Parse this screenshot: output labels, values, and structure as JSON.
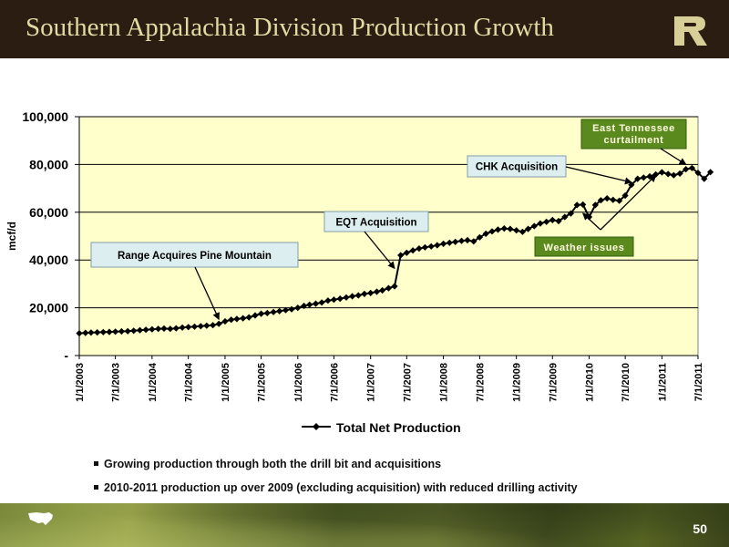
{
  "header": {
    "title": "Southern Appalachia Division Production Growth"
  },
  "chart_data": {
    "type": "line",
    "ylabel": "mcf/d",
    "ylim": [
      0,
      100000
    ],
    "yticks": [
      0,
      20000,
      40000,
      60000,
      80000,
      100000
    ],
    "ytick_labels": [
      "-",
      "20,000",
      "40,000",
      "60,000",
      "80,000",
      "100,000"
    ],
    "xlim": [
      "2003-01-01",
      "2011-07-01"
    ],
    "xtick_dates": [
      "2003-01-01",
      "2003-07-01",
      "2004-01-01",
      "2004-07-01",
      "2005-01-01",
      "2005-07-01",
      "2006-01-01",
      "2006-07-01",
      "2007-01-01",
      "2007-07-01",
      "2008-01-01",
      "2008-07-01",
      "2009-01-01",
      "2009-07-01",
      "2010-01-01",
      "2010-07-01",
      "2011-01-01",
      "2011-07-01"
    ],
    "xtick_labels": [
      "1/1/2003",
      "7/1/2003",
      "1/1/2004",
      "7/1/2004",
      "1/1/2005",
      "7/1/2005",
      "1/1/2006",
      "7/1/2006",
      "1/1/2007",
      "7/1/2007",
      "1/1/2008",
      "7/1/2008",
      "1/1/2009",
      "7/1/2009",
      "1/1/2010",
      "7/1/2010",
      "1/1/2011",
      "7/1/2011"
    ],
    "grid": true,
    "legend_placement": "bottom",
    "colors": {
      "plot_bg": "#ffffcc",
      "line": "#000000",
      "callout_blue": "#ddeef0",
      "callout_green": "#5a8a1e"
    },
    "series": [
      {
        "name": "Total Net Production",
        "points": [
          [
            "2003-01-01",
            9300
          ],
          [
            "2003-02-01",
            9500
          ],
          [
            "2003-03-01",
            9600
          ],
          [
            "2003-04-01",
            9700
          ],
          [
            "2003-05-01",
            9800
          ],
          [
            "2003-06-01",
            9900
          ],
          [
            "2003-07-01",
            10000
          ],
          [
            "2003-08-01",
            10100
          ],
          [
            "2003-09-01",
            10200
          ],
          [
            "2003-10-01",
            10400
          ],
          [
            "2003-11-01",
            10600
          ],
          [
            "2003-12-01",
            10800
          ],
          [
            "2004-01-01",
            11000
          ],
          [
            "2004-02-01",
            11200
          ],
          [
            "2004-03-01",
            11300
          ],
          [
            "2004-04-01",
            11200
          ],
          [
            "2004-05-01",
            11400
          ],
          [
            "2004-06-01",
            11700
          ],
          [
            "2004-07-01",
            11900
          ],
          [
            "2004-08-01",
            12100
          ],
          [
            "2004-09-01",
            12300
          ],
          [
            "2004-10-01",
            12500
          ],
          [
            "2004-11-01",
            12700
          ],
          [
            "2004-12-01",
            13300
          ],
          [
            "2005-01-01",
            14300
          ],
          [
            "2005-02-01",
            15000
          ],
          [
            "2005-03-01",
            15300
          ],
          [
            "2005-04-01",
            15600
          ],
          [
            "2005-05-01",
            16000
          ],
          [
            "2005-06-01",
            16800
          ],
          [
            "2005-07-01",
            17500
          ],
          [
            "2005-08-01",
            17800
          ],
          [
            "2005-09-01",
            18200
          ],
          [
            "2005-10-01",
            18600
          ],
          [
            "2005-11-01",
            19000
          ],
          [
            "2005-12-01",
            19400
          ],
          [
            "2006-01-01",
            20000
          ],
          [
            "2006-02-01",
            20800
          ],
          [
            "2006-03-01",
            21300
          ],
          [
            "2006-04-01",
            21700
          ],
          [
            "2006-05-01",
            22200
          ],
          [
            "2006-06-01",
            23000
          ],
          [
            "2006-07-01",
            23400
          ],
          [
            "2006-08-01",
            23800
          ],
          [
            "2006-09-01",
            24300
          ],
          [
            "2006-10-01",
            24800
          ],
          [
            "2006-11-01",
            25200
          ],
          [
            "2006-12-01",
            25800
          ],
          [
            "2007-01-01",
            26200
          ],
          [
            "2007-02-01",
            26700
          ],
          [
            "2007-03-01",
            27300
          ],
          [
            "2007-04-01",
            28200
          ],
          [
            "2007-05-01",
            29000
          ],
          [
            "2007-06-01",
            42000
          ],
          [
            "2007-07-01",
            43000
          ],
          [
            "2007-08-01",
            44000
          ],
          [
            "2007-09-01",
            44800
          ],
          [
            "2007-10-01",
            45300
          ],
          [
            "2007-11-01",
            45700
          ],
          [
            "2007-12-01",
            46200
          ],
          [
            "2008-01-01",
            46800
          ],
          [
            "2008-02-01",
            47200
          ],
          [
            "2008-03-01",
            47600
          ],
          [
            "2008-04-01",
            48000
          ],
          [
            "2008-05-01",
            48300
          ],
          [
            "2008-06-01",
            47800
          ],
          [
            "2008-07-01",
            49500
          ],
          [
            "2008-08-01",
            51000
          ],
          [
            "2008-09-01",
            52000
          ],
          [
            "2008-10-01",
            52700
          ],
          [
            "2008-11-01",
            53200
          ],
          [
            "2008-12-01",
            53000
          ],
          [
            "2009-01-01",
            52400
          ],
          [
            "2009-02-01",
            51800
          ],
          [
            "2009-03-01",
            53000
          ],
          [
            "2009-04-01",
            54200
          ],
          [
            "2009-05-01",
            55300
          ],
          [
            "2009-06-01",
            56000
          ],
          [
            "2009-07-01",
            56700
          ],
          [
            "2009-08-01",
            56300
          ],
          [
            "2009-09-01",
            58000
          ],
          [
            "2009-10-01",
            59500
          ],
          [
            "2009-11-01",
            63000
          ],
          [
            "2009-12-01",
            63200
          ],
          [
            "2010-01-01",
            58000
          ],
          [
            "2010-02-01",
            63000
          ],
          [
            "2010-03-01",
            65000
          ],
          [
            "2010-04-01",
            65800
          ],
          [
            "2010-05-01",
            65200
          ],
          [
            "2010-06-01",
            64800
          ],
          [
            "2010-07-01",
            67000
          ],
          [
            "2010-08-01",
            71500
          ],
          [
            "2010-09-01",
            74000
          ],
          [
            "2010-10-01",
            74500
          ],
          [
            "2010-11-01",
            75000
          ],
          [
            "2010-12-01",
            75800
          ],
          [
            "2011-01-01",
            76700
          ],
          [
            "2011-02-01",
            76000
          ],
          [
            "2011-03-01",
            75500
          ],
          [
            "2011-04-01",
            76200
          ],
          [
            "2011-05-01",
            78000
          ],
          [
            "2011-06-01",
            78500
          ],
          [
            "2011-07-01",
            76500
          ],
          [
            "2011-08-01",
            74000
          ],
          [
            "2011-09-01",
            76800
          ]
        ]
      }
    ],
    "annotations": [
      {
        "text": "Range Acquires Pine Mountain",
        "style": "blue",
        "target": [
          "2004-12-01",
          15200
        ]
      },
      {
        "text": "EQT Acquisition",
        "style": "blue",
        "target": [
          "2007-05-01",
          36500
        ]
      },
      {
        "text": "CHK Acquisition",
        "style": "blue",
        "target": [
          "2010-08-01",
          72500
        ]
      },
      {
        "text": "Weather issues",
        "style": "green",
        "targets": [
          [
            "2009-12-01",
            59500
          ],
          [
            "2010-12-01",
            75500
          ]
        ]
      },
      {
        "text_lines": [
          "East Tennessee",
          "curtailment"
        ],
        "style": "green",
        "target": [
          "2011-05-01",
          80000
        ]
      }
    ]
  },
  "bullets": [
    "Growing production through both the drill bit and acquisitions",
    "2010-2011 production up over 2009 (excluding acquisition) with reduced drilling activity"
  ],
  "footer": {
    "page_number": "50"
  }
}
